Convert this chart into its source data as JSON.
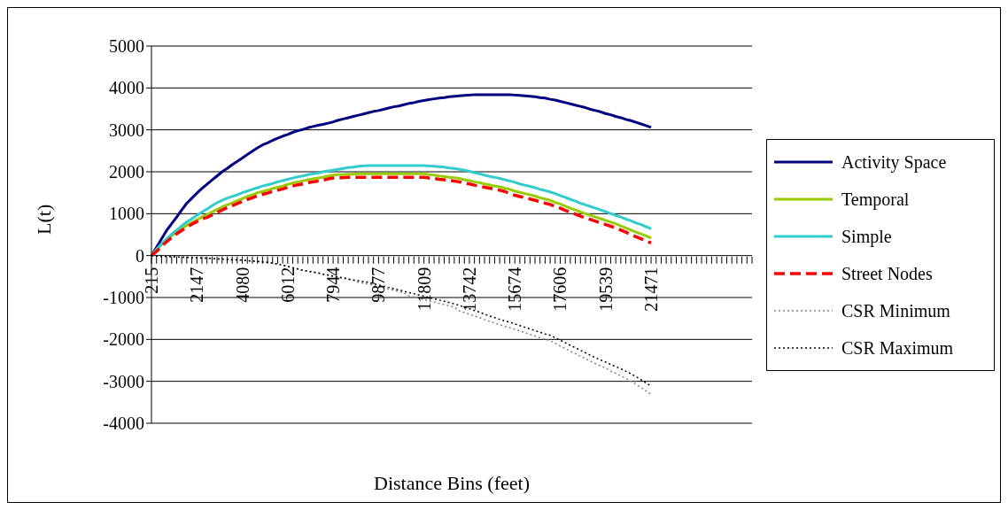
{
  "chart_data": {
    "type": "line",
    "xlabel": "Distance Bins (feet)",
    "ylabel": "L(t)",
    "categories": [
      "215",
      null,
      null,
      null,
      null,
      null,
      null,
      null,
      null,
      "2147",
      null,
      null,
      null,
      null,
      null,
      null,
      null,
      null,
      "4080",
      null,
      null,
      null,
      null,
      null,
      null,
      null,
      null,
      "6012",
      null,
      null,
      null,
      null,
      null,
      null,
      null,
      null,
      "7944",
      null,
      null,
      null,
      null,
      null,
      null,
      null,
      null,
      "9877",
      null,
      null,
      null,
      null,
      null,
      null,
      null,
      null,
      "11809",
      null,
      null,
      null,
      null,
      null,
      null,
      null,
      null,
      "13742",
      null,
      null,
      null,
      null,
      null,
      null,
      null,
      null,
      "15674",
      null,
      null,
      null,
      null,
      null,
      null,
      null,
      null,
      "17606",
      null,
      null,
      null,
      null,
      null,
      null,
      null,
      null,
      "19539",
      null,
      null,
      null,
      null,
      null,
      null,
      null,
      null,
      "21471",
      null,
      null,
      null,
      null,
      null,
      null,
      null,
      null,
      null,
      null,
      null,
      null,
      null,
      null,
      null,
      null,
      null,
      null,
      null,
      null
    ],
    "series": [
      {
        "name": "Activity Space",
        "color": "#000080",
        "line_style": "solid",
        "values": [
          0,
          200,
          400,
          600,
          760,
          920,
          1090,
          1250,
          1370,
          1490,
          1600,
          1700,
          1800,
          1900,
          2000,
          2080,
          2170,
          2250,
          2330,
          2410,
          2490,
          2570,
          2640,
          2690,
          2750,
          2800,
          2850,
          2890,
          2940,
          2980,
          3010,
          3050,
          3080,
          3110,
          3130,
          3160,
          3190,
          3230,
          3260,
          3290,
          3320,
          3350,
          3380,
          3410,
          3440,
          3460,
          3490,
          3520,
          3550,
          3570,
          3600,
          3630,
          3650,
          3680,
          3700,
          3720,
          3740,
          3760,
          3770,
          3790,
          3800,
          3810,
          3820,
          3830,
          3840,
          3840,
          3840,
          3840,
          3840,
          3840,
          3840,
          3840,
          3830,
          3820,
          3810,
          3800,
          3790,
          3770,
          3760,
          3730,
          3710,
          3680,
          3650,
          3620,
          3590,
          3560,
          3530,
          3490,
          3460,
          3430,
          3390,
          3360,
          3320,
          3290,
          3250,
          3220,
          3180,
          3140,
          3100,
          3060,
          null,
          null,
          null,
          null,
          null,
          null,
          null,
          null,
          null,
          null,
          null,
          null,
          null,
          null,
          null,
          null,
          null,
          null,
          null,
          null
        ]
      },
      {
        "name": "Temporal",
        "color": "#99cc00",
        "line_style": "solid",
        "values": [
          0,
          140,
          260,
          370,
          470,
          560,
          640,
          720,
          790,
          850,
          920,
          980,
          1040,
          1100,
          1160,
          1210,
          1260,
          1310,
          1360,
          1410,
          1450,
          1500,
          1530,
          1560,
          1600,
          1630,
          1660,
          1700,
          1730,
          1760,
          1780,
          1810,
          1830,
          1850,
          1870,
          1900,
          1920,
          1930,
          1930,
          1940,
          1940,
          1950,
          1950,
          1950,
          1950,
          1950,
          1950,
          1950,
          1950,
          1950,
          1950,
          1950,
          1950,
          1950,
          1950,
          1930,
          1920,
          1900,
          1890,
          1870,
          1860,
          1840,
          1810,
          1790,
          1760,
          1740,
          1710,
          1690,
          1660,
          1640,
          1610,
          1580,
          1540,
          1510,
          1480,
          1450,
          1420,
          1380,
          1350,
          1320,
          1270,
          1230,
          1180,
          1130,
          1090,
          1040,
          1000,
          960,
          920,
          880,
          840,
          800,
          760,
          710,
          660,
          610,
          560,
          520,
          470,
          420,
          null,
          null,
          null,
          null,
          null,
          null,
          null,
          null,
          null,
          null,
          null,
          null,
          null,
          null,
          null,
          null,
          null,
          null,
          null,
          null
        ]
      },
      {
        "name": "Simple",
        "color": "#33cccc",
        "line_style": "solid",
        "values": [
          0,
          150,
          280,
          400,
          510,
          610,
          710,
          800,
          880,
          960,
          1040,
          1110,
          1190,
          1260,
          1320,
          1370,
          1410,
          1450,
          1500,
          1540,
          1580,
          1620,
          1660,
          1690,
          1720,
          1760,
          1790,
          1820,
          1850,
          1880,
          1900,
          1930,
          1950,
          1970,
          2000,
          2020,
          2040,
          2060,
          2080,
          2100,
          2110,
          2130,
          2140,
          2150,
          2150,
          2150,
          2150,
          2150,
          2150,
          2150,
          2150,
          2150,
          2150,
          2150,
          2150,
          2140,
          2130,
          2120,
          2110,
          2090,
          2080,
          2060,
          2040,
          2010,
          1980,
          1950,
          1920,
          1890,
          1870,
          1840,
          1810,
          1780,
          1750,
          1710,
          1680,
          1650,
          1620,
          1580,
          1550,
          1520,
          1480,
          1430,
          1390,
          1340,
          1300,
          1250,
          1210,
          1170,
          1130,
          1090,
          1050,
          1000,
          960,
          920,
          870,
          830,
          780,
          740,
          690,
          640,
          null,
          null,
          null,
          null,
          null,
          null,
          null,
          null,
          null,
          null,
          null,
          null,
          null,
          null,
          null,
          null,
          null,
          null,
          null,
          null
        ]
      },
      {
        "name": "Street Nodes",
        "color": "#ff0000",
        "line_style": "dashed",
        "values": [
          0,
          100,
          220,
          330,
          430,
          520,
          600,
          680,
          750,
          810,
          880,
          910,
          970,
          1030,
          1090,
          1140,
          1190,
          1240,
          1290,
          1340,
          1380,
          1430,
          1460,
          1490,
          1530,
          1560,
          1590,
          1630,
          1660,
          1690,
          1710,
          1740,
          1760,
          1780,
          1800,
          1830,
          1850,
          1860,
          1860,
          1870,
          1870,
          1870,
          1870,
          1870,
          1870,
          1870,
          1870,
          1870,
          1870,
          1870,
          1870,
          1870,
          1870,
          1870,
          1870,
          1850,
          1840,
          1820,
          1810,
          1790,
          1780,
          1760,
          1730,
          1710,
          1680,
          1660,
          1630,
          1610,
          1580,
          1560,
          1530,
          1480,
          1440,
          1410,
          1380,
          1350,
          1320,
          1280,
          1250,
          1220,
          1170,
          1130,
          1080,
          1030,
          990,
          940,
          900,
          860,
          820,
          780,
          740,
          700,
          660,
          610,
          560,
          500,
          450,
          400,
          350,
          300,
          null,
          null,
          null,
          null,
          null,
          null,
          null,
          null,
          null,
          null,
          null,
          null,
          null,
          null,
          null,
          null,
          null,
          null,
          null,
          null
        ]
      },
      {
        "name": "CSR Minimum",
        "color": "#808080",
        "line_style": "dotted",
        "values": [
          0,
          -10,
          -20,
          -20,
          -30,
          -30,
          -40,
          -40,
          -50,
          -50,
          -60,
          -60,
          -70,
          -80,
          -80,
          -90,
          -100,
          -100,
          -110,
          -120,
          -130,
          -140,
          -150,
          -160,
          -180,
          -200,
          -230,
          -260,
          -290,
          -320,
          -350,
          -380,
          -400,
          -420,
          -450,
          -470,
          -500,
          -520,
          -540,
          -570,
          -590,
          -640,
          -660,
          -680,
          -710,
          -740,
          -770,
          -800,
          -830,
          -860,
          -890,
          -960,
          -990,
          -1020,
          -1050,
          -1080,
          -1110,
          -1140,
          -1170,
          -1200,
          -1230,
          -1320,
          -1360,
          -1400,
          -1440,
          -1480,
          -1530,
          -1570,
          -1610,
          -1650,
          -1690,
          -1720,
          -1760,
          -1800,
          -1840,
          -1880,
          -1920,
          -1960,
          -2000,
          -2030,
          -2090,
          -2160,
          -2220,
          -2280,
          -2340,
          -2400,
          -2460,
          -2520,
          -2580,
          -2630,
          -2680,
          -2760,
          -2810,
          -2870,
          -2930,
          -3000,
          -3070,
          -3150,
          -3230,
          -3310,
          null,
          null,
          null,
          null,
          null,
          null,
          null,
          null,
          null,
          null,
          null,
          null,
          null,
          null,
          null,
          null,
          null,
          null,
          null,
          null
        ]
      },
      {
        "name": "CSR Maximum",
        "color": "#000000",
        "line_style": "dotted",
        "values": [
          0,
          -10,
          -20,
          -20,
          -30,
          -30,
          -40,
          -40,
          -50,
          -50,
          -60,
          -60,
          -70,
          -80,
          -80,
          -90,
          -100,
          -100,
          -110,
          -120,
          -130,
          -140,
          -150,
          -160,
          -180,
          -200,
          -230,
          -260,
          -290,
          -320,
          -350,
          -370,
          -390,
          -410,
          -440,
          -460,
          -490,
          -510,
          -530,
          -560,
          -580,
          -600,
          -620,
          -640,
          -670,
          -700,
          -730,
          -760,
          -790,
          -820,
          -850,
          -880,
          -910,
          -940,
          -970,
          -1000,
          -1030,
          -1060,
          -1090,
          -1120,
          -1150,
          -1190,
          -1230,
          -1270,
          -1310,
          -1350,
          -1400,
          -1440,
          -1480,
          -1520,
          -1560,
          -1590,
          -1630,
          -1670,
          -1710,
          -1750,
          -1790,
          -1830,
          -1870,
          -1900,
          -1960,
          -2020,
          -2080,
          -2140,
          -2200,
          -2260,
          -2320,
          -2380,
          -2440,
          -2490,
          -2540,
          -2600,
          -2650,
          -2700,
          -2760,
          -2820,
          -2890,
          -2960,
          -3040,
          -3110,
          null,
          null,
          null,
          null,
          null,
          null,
          null,
          null,
          null,
          null,
          null,
          null,
          null,
          null,
          null,
          null,
          null,
          null,
          null,
          null
        ]
      }
    ],
    "ylim": [
      -4000,
      5000
    ],
    "yticks": [
      -4000,
      -3000,
      -2000,
      -1000,
      0,
      1000,
      2000,
      3000,
      4000,
      5000
    ],
    "grid": "y",
    "legend": "right",
    "marker": "none"
  }
}
